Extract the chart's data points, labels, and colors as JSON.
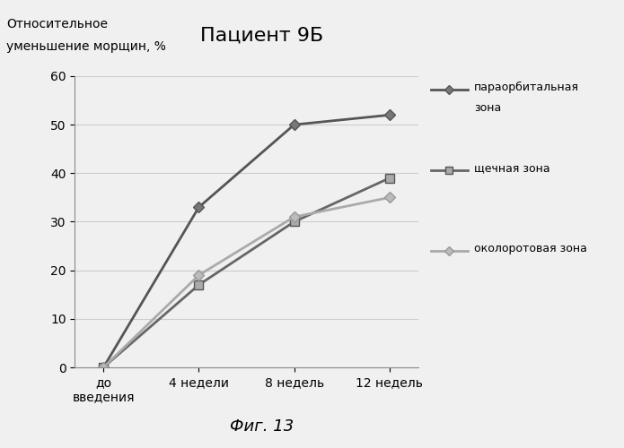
{
  "title": "Пациент 9Б",
  "xlabel_fig": "Фиг. 13",
  "ylabel_line1": "Относительное",
  "ylabel_line2": "уменьшение морщин, %",
  "x_labels": [
    "до\nвведения",
    "4 недели",
    "8 недель",
    "12 недель"
  ],
  "x_values": [
    0,
    1,
    2,
    3
  ],
  "series": [
    {
      "label": "параорбитальная\nзона",
      "values": [
        0,
        33,
        50,
        52
      ],
      "color": "#555555",
      "linewidth": 2.0,
      "marker": "D",
      "markersize": 6,
      "markerfacecolor": "#777777",
      "markeredgecolor": "#555555"
    },
    {
      "label": "щечная зона",
      "values": [
        0,
        17,
        30,
        39
      ],
      "color": "#666666",
      "linewidth": 2.0,
      "marker": "s",
      "markersize": 7,
      "markerfacecolor": "#aaaaaa",
      "markeredgecolor": "#555555"
    },
    {
      "label": "околоротовая зона",
      "values": [
        0,
        19,
        31,
        35
      ],
      "color": "#aaaaaa",
      "linewidth": 2.0,
      "marker": "D",
      "markersize": 6,
      "markerfacecolor": "#bbbbbb",
      "markeredgecolor": "#999999"
    }
  ],
  "ylim": [
    0,
    60
  ],
  "yticks": [
    0,
    10,
    20,
    30,
    40,
    50,
    60
  ],
  "grid_color": "#cccccc",
  "background_color": "#f0f0f0",
  "title_fontsize": 16,
  "label_fontsize": 10,
  "tick_fontsize": 10,
  "legend_fontsize": 9
}
